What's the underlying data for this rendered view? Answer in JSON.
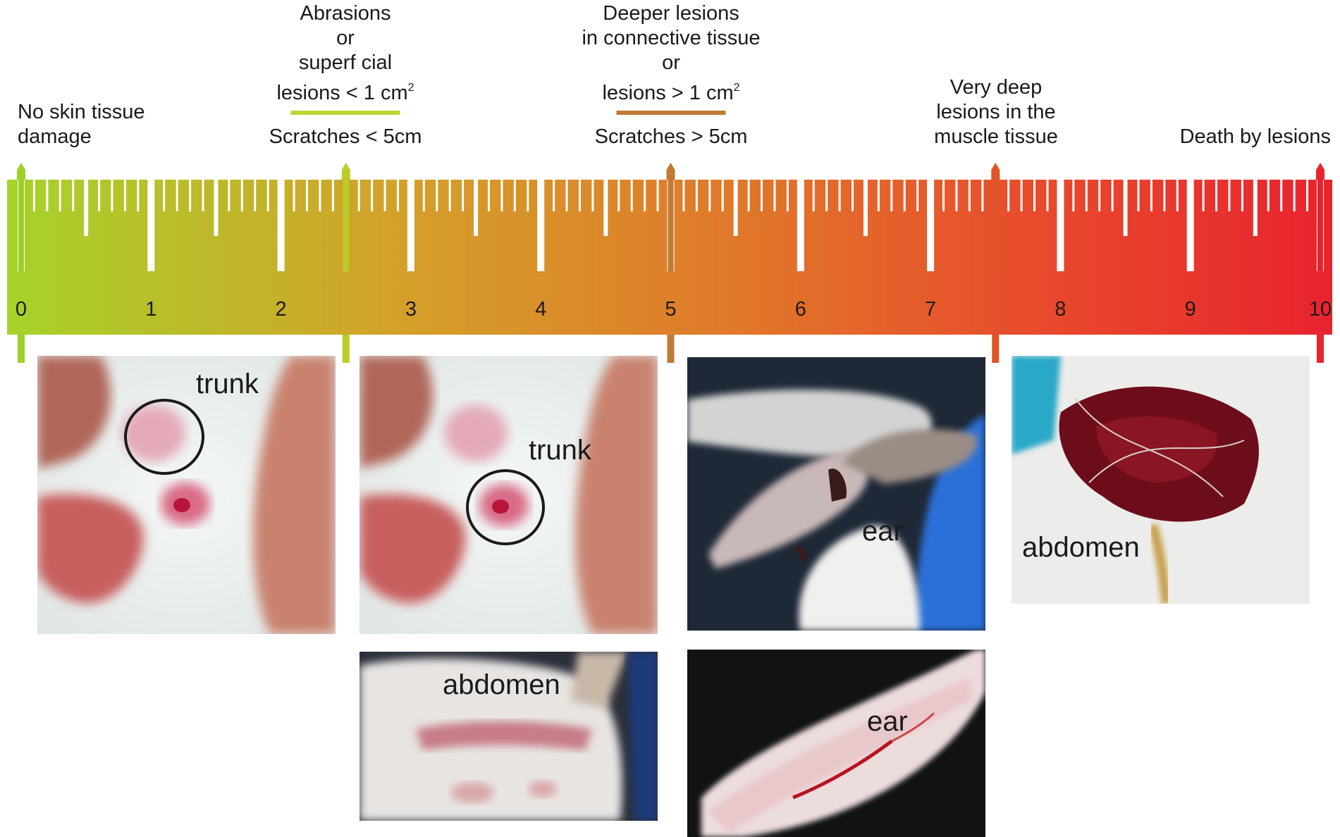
{
  "categories": [
    {
      "score": 0,
      "lines": [
        "No skin tissue",
        "damage"
      ],
      "sub": "",
      "color": "#9cd12a"
    },
    {
      "score": 2.5,
      "lines": [
        "Abrasions",
        "or",
        "superf cial",
        "lesions < 1 cm²"
      ],
      "sub": "Scratches < 5cm",
      "color": "#bccd2a"
    },
    {
      "score": 5,
      "lines": [
        "Deeper lesions",
        "in connective tissue",
        "or",
        "lesions > 1 cm²"
      ],
      "sub": "Scratches > 5cm",
      "color": "#c07a35"
    },
    {
      "score": 7.5,
      "lines": [
        "Very deep",
        "lesions in the",
        "muscle tissue"
      ],
      "sub": "",
      "color": "#e0552a"
    },
    {
      "score": 10,
      "lines": [
        "Death by lesions"
      ],
      "sub": "",
      "color": "#e8232e"
    }
  ],
  "scale": {
    "min": 0,
    "max": 10,
    "tick_labels": [
      "0",
      "1",
      "2",
      "3",
      "4",
      "5",
      "6",
      "7",
      "8",
      "9",
      "10"
    ],
    "gradient": [
      "#a6d32a",
      "#d4a02a",
      "#e0782a",
      "#e84a2c",
      "#e8232e"
    ]
  },
  "photos": [
    {
      "name": "photo-trunk-1",
      "label": "trunk",
      "circle": true
    },
    {
      "name": "photo-trunk-2",
      "label": "trunk",
      "circle": true
    },
    {
      "name": "photo-abdomen-1",
      "label": "abdomen",
      "circle": false
    },
    {
      "name": "photo-ear-1",
      "label": "ear",
      "circle": false
    },
    {
      "name": "photo-ear-2",
      "label": "ear",
      "circle": false
    },
    {
      "name": "photo-abdomen-2",
      "label": "abdomen",
      "circle": false
    }
  ]
}
